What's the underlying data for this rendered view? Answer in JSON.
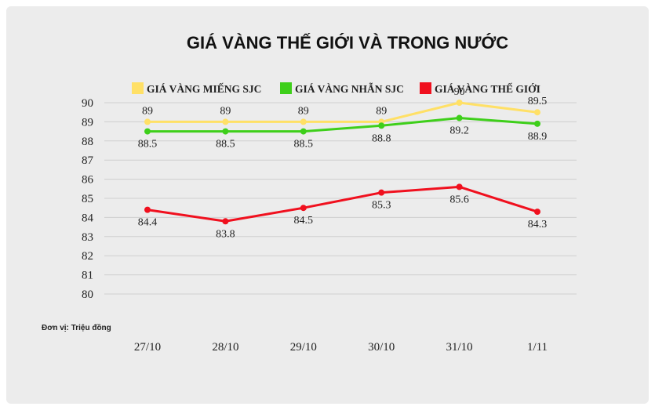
{
  "chart_data": {
    "type": "line",
    "title": "GIÁ VÀNG THẾ GIỚI VÀ TRONG NƯỚC",
    "unit_note": "Đơn vị: Triệu đồng",
    "categories": [
      "27/10",
      "28/10",
      "29/10",
      "30/10",
      "31/10",
      "1/11"
    ],
    "ylim": [
      80,
      90
    ],
    "yticks": [
      90,
      89,
      88,
      87,
      86,
      85,
      84,
      83,
      82,
      81,
      80
    ],
    "grid": true,
    "legend_position": "top",
    "series": [
      {
        "name": "GIÁ VÀNG MIẾNG SJC",
        "color": "#ffe066",
        "values": [
          89,
          89,
          89,
          89,
          90,
          89.5
        ],
        "labels": [
          "89",
          "89",
          "89",
          "89",
          "90",
          "89.5"
        ],
        "label_side": "above"
      },
      {
        "name": "GIÁ VÀNG NHẪN SJC",
        "color": "#3ecf1a",
        "values": [
          88.5,
          88.5,
          88.5,
          88.8,
          89.2,
          88.9
        ],
        "labels": [
          "88.5",
          "88.5",
          "88.5",
          "88.8",
          "89.2",
          "88.9"
        ],
        "label_side": "below"
      },
      {
        "name": "GIÁ VÀNG THẾ GIỚI",
        "color": "#f0101e",
        "values": [
          84.4,
          83.8,
          84.5,
          85.3,
          85.6,
          84.3
        ],
        "labels": [
          "84.4",
          "83.8",
          "84.5",
          "85.3",
          "85.6",
          "84.3"
        ],
        "label_side": "below"
      }
    ]
  }
}
